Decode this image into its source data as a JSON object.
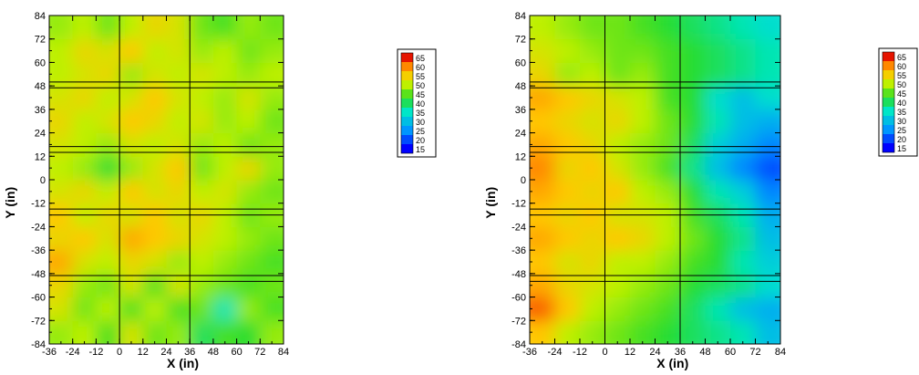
{
  "chart_data": [
    {
      "type": "heatmap",
      "xlabel": "X (in)",
      "ylabel": "Y (in)",
      "xlim": [
        -36,
        84
      ],
      "ylim": [
        -84,
        84
      ],
      "xticks": [
        -36,
        -24,
        -12,
        0,
        12,
        24,
        36,
        48,
        60,
        72,
        84
      ],
      "yticks": [
        -84,
        -72,
        -60,
        -48,
        -36,
        -24,
        -12,
        0,
        12,
        24,
        36,
        48,
        60,
        72,
        84
      ],
      "xtick_labels": [
        "-36",
        "-24",
        "-12",
        "0",
        "12",
        "24",
        "36",
        "48",
        "60",
        "72",
        "84"
      ],
      "ytick_labels": [
        "-84",
        "-72",
        "-60",
        "-48",
        "-36",
        "-24",
        "-12",
        "0",
        "12",
        "24",
        "36",
        "48",
        "60",
        "72",
        "84"
      ],
      "colorbar": {
        "min": 15,
        "max": 65,
        "levels": [
          65,
          60,
          55,
          50,
          45,
          40,
          35,
          30,
          25,
          20,
          15
        ],
        "labels": [
          "65",
          "60",
          "55",
          "50",
          "45",
          "40",
          "35",
          "30",
          "25",
          "20",
          "15"
        ]
      },
      "vertical_lines_x": [
        0,
        36
      ],
      "horizontal_lines_y": [
        -52,
        -49,
        -18,
        -15,
        14,
        17,
        47,
        50
      ],
      "grid_x": [
        -30,
        -18,
        -6,
        6,
        18,
        30,
        42,
        54,
        66,
        78
      ],
      "grid_y": [
        -78,
        -66,
        -54,
        -42,
        -30,
        -18,
        -6,
        6,
        18,
        30,
        42,
        54,
        66,
        78
      ],
      "z": [
        [
          48,
          50,
          44,
          52,
          46,
          48,
          40,
          44,
          42,
          48
        ],
        [
          52,
          46,
          50,
          44,
          50,
          44,
          46,
          36,
          48,
          44
        ],
        [
          54,
          48,
          46,
          52,
          44,
          52,
          48,
          46,
          44,
          46
        ],
        [
          58,
          52,
          50,
          54,
          52,
          48,
          50,
          48,
          46,
          44
        ],
        [
          54,
          56,
          52,
          58,
          56,
          54,
          52,
          50,
          48,
          46
        ],
        [
          56,
          50,
          54,
          52,
          56,
          52,
          54,
          50,
          46,
          48
        ],
        [
          52,
          54,
          50,
          56,
          52,
          54,
          50,
          52,
          48,
          46
        ],
        [
          50,
          48,
          42,
          48,
          52,
          56,
          46,
          50,
          54,
          48
        ],
        [
          52,
          50,
          48,
          52,
          50,
          52,
          48,
          50,
          46,
          48
        ],
        [
          54,
          50,
          52,
          56,
          54,
          50,
          52,
          48,
          50,
          46
        ],
        [
          52,
          54,
          50,
          52,
          56,
          52,
          50,
          48,
          52,
          48
        ],
        [
          50,
          52,
          54,
          48,
          52,
          50,
          52,
          50,
          48,
          50
        ],
        [
          50,
          54,
          52,
          56,
          50,
          52,
          48,
          50,
          46,
          48
        ],
        [
          48,
          50,
          46,
          50,
          54,
          52,
          46,
          44,
          48,
          46
        ]
      ]
    },
    {
      "type": "heatmap",
      "xlabel": "X (in)",
      "ylabel": "Y (in)",
      "xlim": [
        -36,
        84
      ],
      "ylim": [
        -84,
        84
      ],
      "xticks": [
        -36,
        -24,
        -12,
        0,
        12,
        24,
        36,
        48,
        60,
        72,
        84
      ],
      "yticks": [
        -84,
        -72,
        -60,
        -48,
        -36,
        -24,
        -12,
        0,
        12,
        24,
        36,
        48,
        60,
        72,
        84
      ],
      "xtick_labels": [
        "-36",
        "-24",
        "-12",
        "0",
        "12",
        "24",
        "36",
        "48",
        "60",
        "72",
        "84"
      ],
      "ytick_labels": [
        "-84",
        "-72",
        "-60",
        "-48",
        "-36",
        "-24",
        "-12",
        "0",
        "12",
        "24",
        "36",
        "48",
        "60",
        "72",
        "84"
      ],
      "colorbar": {
        "min": 15,
        "max": 65,
        "levels": [
          65,
          60,
          55,
          50,
          45,
          40,
          35,
          30,
          25,
          20,
          15
        ],
        "labels": [
          "65",
          "60",
          "55",
          "50",
          "45",
          "40",
          "35",
          "30",
          "25",
          "20",
          "15"
        ]
      },
      "vertical_lines_x": [
        0,
        36
      ],
      "horizontal_lines_y": [
        -52,
        -49,
        -18,
        -15,
        14,
        17,
        47,
        50
      ],
      "grid_x": [
        -30,
        -18,
        -6,
        6,
        18,
        30,
        42,
        54,
        66,
        78
      ],
      "grid_y": [
        -78,
        -66,
        -54,
        -42,
        -30,
        -18,
        -6,
        6,
        18,
        30,
        42,
        54,
        66,
        78
      ],
      "z": [
        [
          56,
          50,
          48,
          46,
          44,
          42,
          40,
          38,
          36,
          30
        ],
        [
          62,
          56,
          50,
          48,
          46,
          44,
          40,
          36,
          30,
          28
        ],
        [
          58,
          54,
          52,
          50,
          48,
          46,
          42,
          40,
          38,
          34
        ],
        [
          56,
          52,
          54,
          50,
          50,
          48,
          44,
          42,
          36,
          32
        ],
        [
          58,
          56,
          54,
          56,
          54,
          50,
          46,
          42,
          38,
          30
        ],
        [
          56,
          54,
          56,
          52,
          52,
          50,
          44,
          40,
          36,
          28
        ],
        [
          58,
          56,
          54,
          56,
          50,
          48,
          42,
          36,
          32,
          24
        ],
        [
          60,
          54,
          56,
          52,
          48,
          44,
          38,
          30,
          24,
          20
        ],
        [
          58,
          56,
          54,
          50,
          48,
          46,
          40,
          32,
          28,
          24
        ],
        [
          56,
          54,
          52,
          54,
          50,
          46,
          42,
          36,
          30,
          28
        ],
        [
          58,
          56,
          54,
          52,
          50,
          44,
          42,
          34,
          30,
          34
        ],
        [
          54,
          48,
          50,
          46,
          48,
          44,
          42,
          40,
          38,
          36
        ],
        [
          52,
          50,
          48,
          46,
          46,
          44,
          42,
          40,
          38,
          36
        ],
        [
          50,
          48,
          46,
          46,
          44,
          42,
          40,
          38,
          36,
          34
        ]
      ]
    }
  ]
}
